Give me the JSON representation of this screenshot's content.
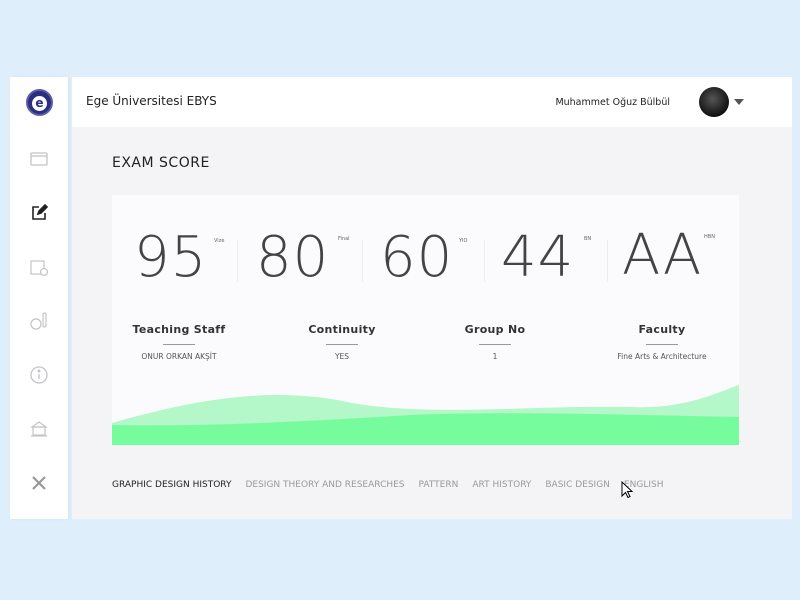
{
  "app": {
    "title": "Ege Üniversitesi EBYS",
    "logo_letter": "e",
    "user_name": "Muhammet Oğuz Bülbül"
  },
  "sidebar": {
    "items": [
      {
        "icon": "browser-window-icon"
      },
      {
        "icon": "edit-icon",
        "active": true
      },
      {
        "icon": "calendar-clock-icon"
      },
      {
        "icon": "thermometer-icon"
      },
      {
        "icon": "info-icon"
      },
      {
        "icon": "building-icon"
      },
      {
        "icon": "fork-knife-icon"
      }
    ]
  },
  "page": {
    "title": "EXAM SCORE"
  },
  "scores": [
    {
      "value": "95",
      "label": "Vize"
    },
    {
      "value": "80",
      "label": "Final"
    },
    {
      "value": "60",
      "label": "YIO"
    },
    {
      "value": "44",
      "label": "BN"
    },
    {
      "value": "AA",
      "label": "HBN"
    }
  ],
  "details": [
    {
      "label": "Teaching Staff",
      "value": "ONUR ORKAN AKŞİT"
    },
    {
      "label": "Continuity",
      "value": "YES"
    },
    {
      "label": "Group No",
      "value": "1"
    },
    {
      "label": "Faculty",
      "value": "Fine Arts & Architecture"
    }
  ],
  "tabs": [
    {
      "label": "GRAPHIC DESIGN HISTORY",
      "active": true
    },
    {
      "label": "DESIGN THEORY AND RESEARCHES"
    },
    {
      "label": "PATTERN"
    },
    {
      "label": "ART HISTORY"
    },
    {
      "label": "BASIC DESIGN"
    },
    {
      "label": "ENGLISH"
    }
  ],
  "colors": {
    "accent": "#6ffc98",
    "wave_light": "#b4f7c8"
  }
}
